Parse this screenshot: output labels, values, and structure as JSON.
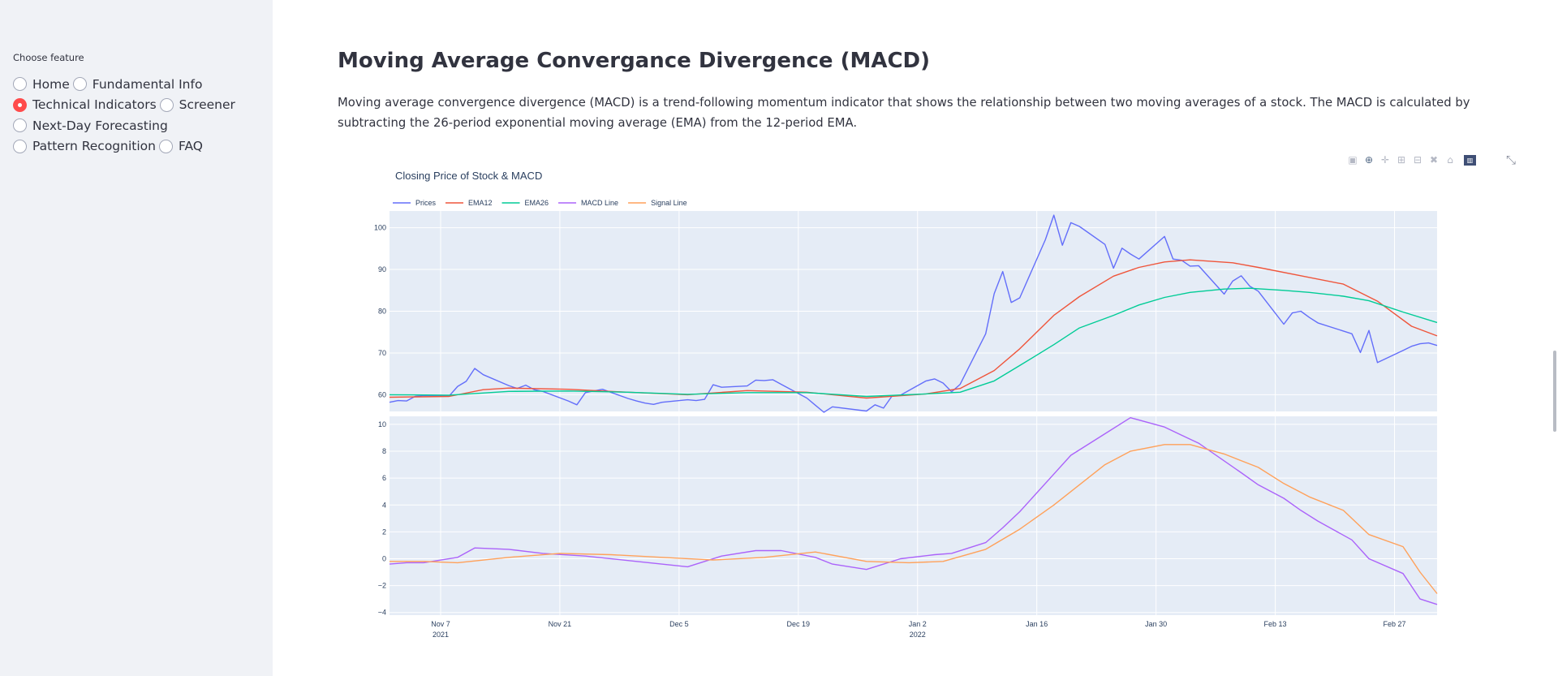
{
  "sidebar": {
    "label": "Choose feature",
    "options": [
      {
        "label": "Home",
        "selected": false
      },
      {
        "label": "Fundamental Info",
        "selected": false
      },
      {
        "label": "Technical Indicators",
        "selected": true
      },
      {
        "label": "Screener",
        "selected": false
      },
      {
        "label": "Next-Day Forecasting",
        "selected": false
      },
      {
        "label": "Pattern Recognition",
        "selected": false
      },
      {
        "label": "FAQ",
        "selected": false
      }
    ]
  },
  "main": {
    "title": "Moving Average Convergance Divergence (MACD)",
    "description": "Moving average convergence divergence (MACD) is a trend-following momentum indicator that shows the relationship between two moving averages of a stock. The MACD is calculated by subtracting the 26-period exponential moving average (EMA) from the 12-period EMA."
  },
  "modebar": {
    "icons": [
      "camera-icon",
      "zoom-icon",
      "pan-icon",
      "zoom-in-icon",
      "zoom-out-icon",
      "autoscale-icon",
      "reset-axes-icon",
      "plotly-logo-icon"
    ],
    "expand_icon": "fullscreen-icon"
  },
  "colors": {
    "prices": "#636efa",
    "ema12": "#ef553b",
    "ema26": "#00cc96",
    "macd": "#ab63fa",
    "signal": "#ffa15a",
    "plot_bg": "#e5ecf6",
    "accent": "#ff4b4b"
  },
  "chart_data": [
    {
      "type": "line",
      "title": "Closing Price of Stock & MACD",
      "legend": "top-left",
      "x_start": "2021-11-01",
      "x_end": "2022-03-04",
      "ylim": [
        56,
        104
      ],
      "yticks": [
        60,
        70,
        80,
        90,
        100
      ],
      "x_ticks": [
        "Nov 7\n2021",
        "Nov 21",
        "Dec 5",
        "Dec 19",
        "Jan 2\n2022",
        "Jan 16",
        "Jan 30",
        "Feb 13",
        "Feb 27"
      ],
      "series": [
        {
          "name": "Prices",
          "x": [
            "2021-11-01",
            "2021-11-02",
            "2021-11-03",
            "2021-11-04",
            "2021-11-05",
            "2021-11-08",
            "2021-11-09",
            "2021-11-10",
            "2021-11-11",
            "2021-11-12",
            "2021-11-15",
            "2021-11-16",
            "2021-11-17",
            "2021-11-18",
            "2021-11-19",
            "2021-11-22",
            "2021-11-23",
            "2021-11-24",
            "2021-11-26",
            "2021-11-29",
            "2021-11-30",
            "2021-12-01",
            "2021-12-02",
            "2021-12-03",
            "2021-12-06",
            "2021-12-07",
            "2021-12-08",
            "2021-12-09",
            "2021-12-10",
            "2021-12-13",
            "2021-12-14",
            "2021-12-15",
            "2021-12-16",
            "2021-12-17",
            "2021-12-20",
            "2021-12-21",
            "2021-12-22",
            "2021-12-23",
            "2021-12-27",
            "2021-12-28",
            "2021-12-29",
            "2021-12-30",
            "2021-12-31",
            "2022-01-03",
            "2022-01-04",
            "2022-01-05",
            "2022-01-06",
            "2022-01-07",
            "2022-01-10",
            "2022-01-11",
            "2022-01-12",
            "2022-01-13",
            "2022-01-14",
            "2022-01-17",
            "2022-01-18",
            "2022-01-19",
            "2022-01-20",
            "2022-01-21",
            "2022-01-24",
            "2022-01-25",
            "2022-01-26",
            "2022-01-27",
            "2022-01-28",
            "2022-01-31",
            "2022-02-01",
            "2022-02-02",
            "2022-02-03",
            "2022-02-04",
            "2022-02-07",
            "2022-02-08",
            "2022-02-09",
            "2022-02-10",
            "2022-02-11",
            "2022-02-14",
            "2022-02-15",
            "2022-02-16",
            "2022-02-17",
            "2022-02-18",
            "2022-02-22",
            "2022-02-23",
            "2022-02-24",
            "2022-02-25",
            "2022-02-28",
            "2022-03-01",
            "2022-03-02",
            "2022-03-03",
            "2022-03-04"
          ],
          "y": [
            58.2,
            58.6,
            58.5,
            59.6,
            59.8,
            59.7,
            62.0,
            63.2,
            66.3,
            64.8,
            62.2,
            61.5,
            62.3,
            61.2,
            60.8,
            58.5,
            57.6,
            60.5,
            61.3,
            59.1,
            58.5,
            58.0,
            57.7,
            58.2,
            58.8,
            58.6,
            58.9,
            62.4,
            61.8,
            62.1,
            63.5,
            63.4,
            63.6,
            62.5,
            59.2,
            57.5,
            55.8,
            57.1,
            56.1,
            57.6,
            56.8,
            59.7,
            59.9,
            63.3,
            63.8,
            62.8,
            60.7,
            62.5,
            74.6,
            84.2,
            89.5,
            82.1,
            83.2,
            97.1,
            103.0,
            95.8,
            101.2,
            100.3,
            96.0,
            90.3,
            95.1,
            93.7,
            92.5,
            97.9,
            92.5,
            92.2,
            90.8,
            90.9,
            84.1,
            87.2,
            88.5,
            86.0,
            84.8,
            76.9,
            79.6,
            80.0,
            78.5,
            77.2,
            74.6,
            70.1,
            75.4,
            67.7,
            70.6,
            71.6,
            72.2,
            72.4,
            71.8
          ]
        },
        {
          "name": "EMA12",
          "x": [
            "2021-11-01",
            "2021-11-08",
            "2021-11-12",
            "2021-11-15",
            "2021-11-22",
            "2021-11-29",
            "2021-12-06",
            "2021-12-13",
            "2021-12-20",
            "2021-12-27",
            "2022-01-03",
            "2022-01-07",
            "2022-01-11",
            "2022-01-14",
            "2022-01-18",
            "2022-01-21",
            "2022-01-25",
            "2022-01-28",
            "2022-01-31",
            "2022-02-03",
            "2022-02-08",
            "2022-02-11",
            "2022-02-16",
            "2022-02-21",
            "2022-02-25",
            "2022-03-01",
            "2022-03-04"
          ],
          "y": [
            59.4,
            59.6,
            61.2,
            61.6,
            61.3,
            60.6,
            60.0,
            61.0,
            60.6,
            59.2,
            60.2,
            61.5,
            65.8,
            71.0,
            79.0,
            83.5,
            88.4,
            90.5,
            91.8,
            92.3,
            91.6,
            90.5,
            88.5,
            86.5,
            82.4,
            76.4,
            74.1
          ]
        },
        {
          "name": "EMA26",
          "x": [
            "2021-11-01",
            "2021-11-08",
            "2021-11-15",
            "2021-11-22",
            "2021-11-29",
            "2021-12-06",
            "2021-12-13",
            "2021-12-20",
            "2021-12-27",
            "2022-01-03",
            "2022-01-07",
            "2022-01-11",
            "2022-01-14",
            "2022-01-18",
            "2022-01-21",
            "2022-01-25",
            "2022-01-28",
            "2022-01-31",
            "2022-02-03",
            "2022-02-07",
            "2022-02-10",
            "2022-02-14",
            "2022-02-17",
            "2022-02-21",
            "2022-02-24",
            "2022-02-28",
            "2022-03-04"
          ],
          "y": [
            60.0,
            59.9,
            60.8,
            60.9,
            60.6,
            60.1,
            60.5,
            60.5,
            59.6,
            60.2,
            60.6,
            63.3,
            67.0,
            72.0,
            76.0,
            79.0,
            81.5,
            83.3,
            84.5,
            85.3,
            85.5,
            85.0,
            84.5,
            83.6,
            82.5,
            79.8,
            77.3
          ]
        }
      ]
    },
    {
      "type": "line",
      "ylim": [
        -4.2,
        10.6
      ],
      "yticks": [
        -4,
        -2,
        0,
        2,
        4,
        6,
        8,
        10
      ],
      "series": [
        {
          "name": "MACD Line",
          "x": [
            "2021-11-01",
            "2021-11-03",
            "2021-11-05",
            "2021-11-09",
            "2021-11-11",
            "2021-11-15",
            "2021-11-19",
            "2021-11-24",
            "2021-11-30",
            "2021-12-06",
            "2021-12-10",
            "2021-12-14",
            "2021-12-17",
            "2021-12-21",
            "2021-12-23",
            "2021-12-27",
            "2021-12-31",
            "2022-01-04",
            "2022-01-06",
            "2022-01-10",
            "2022-01-12",
            "2022-01-14",
            "2022-01-18",
            "2022-01-20",
            "2022-01-24",
            "2022-01-27",
            "2022-01-31",
            "2022-02-02",
            "2022-02-04",
            "2022-02-09",
            "2022-02-11",
            "2022-02-14",
            "2022-02-16",
            "2022-02-18",
            "2022-02-22",
            "2022-02-24",
            "2022-02-28",
            "2022-03-02",
            "2022-03-04"
          ],
          "y": [
            -0.4,
            -0.3,
            -0.3,
            0.1,
            0.8,
            0.7,
            0.4,
            0.2,
            -0.2,
            -0.6,
            0.2,
            0.6,
            0.6,
            0.1,
            -0.4,
            -0.8,
            0.0,
            0.3,
            0.4,
            1.2,
            2.3,
            3.5,
            6.3,
            7.7,
            9.3,
            10.5,
            9.8,
            9.2,
            8.6,
            6.4,
            5.5,
            4.5,
            3.6,
            2.8,
            1.4,
            0.0,
            -1.1,
            -3.0,
            -3.4
          ]
        },
        {
          "name": "Signal Line",
          "x": [
            "2021-11-01",
            "2021-11-05",
            "2021-11-09",
            "2021-11-15",
            "2021-11-21",
            "2021-11-27",
            "2021-12-03",
            "2021-12-09",
            "2021-12-15",
            "2021-12-21",
            "2021-12-27",
            "2022-01-01",
            "2022-01-05",
            "2022-01-10",
            "2022-01-14",
            "2022-01-18",
            "2022-01-21",
            "2022-01-24",
            "2022-01-27",
            "2022-01-31",
            "2022-02-03",
            "2022-02-07",
            "2022-02-11",
            "2022-02-14",
            "2022-02-17",
            "2022-02-21",
            "2022-02-24",
            "2022-02-28",
            "2022-03-02",
            "2022-03-04"
          ],
          "y": [
            -0.2,
            -0.2,
            -0.3,
            0.1,
            0.4,
            0.3,
            0.1,
            -0.1,
            0.1,
            0.5,
            -0.2,
            -0.3,
            -0.2,
            0.7,
            2.2,
            4.0,
            5.5,
            7.0,
            8.0,
            8.5,
            8.5,
            7.8,
            6.8,
            5.6,
            4.6,
            3.6,
            1.8,
            0.9,
            -1.0,
            -2.6
          ]
        }
      ]
    }
  ]
}
